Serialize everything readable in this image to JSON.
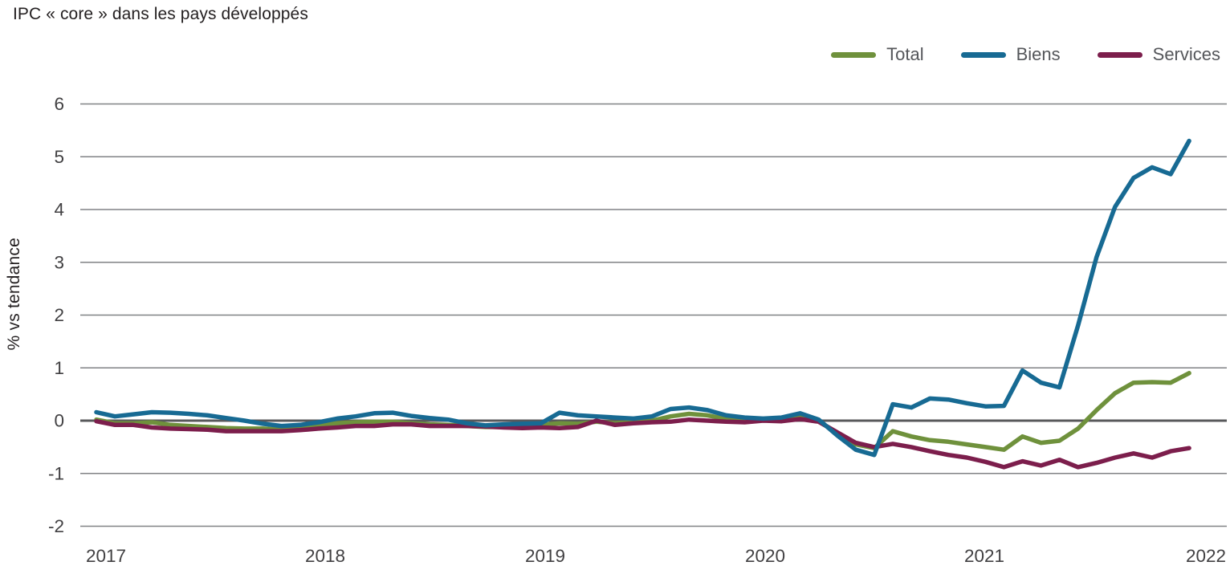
{
  "title": "IPC « core » dans les pays développés",
  "y_axis_title": "% vs tendance",
  "legend": [
    {
      "label": "Total",
      "color": "#6F913C"
    },
    {
      "label": "Biens",
      "color": "#176A93"
    },
    {
      "label": "Services",
      "color": "#7C1E4C"
    }
  ],
  "colors": {
    "gridline": "#808285",
    "zero_line": "#58595B",
    "tick_text": "#414042",
    "legend_text": "#54565A",
    "title_text": "#231F20"
  },
  "chart_data": {
    "type": "line",
    "title": "IPC « core » dans les pays développés",
    "xlabel": "",
    "ylabel": "% vs tendance",
    "ylim": [
      -2,
      6
    ],
    "yticks": [
      6,
      5,
      4,
      3,
      2,
      1,
      0,
      -1,
      -2
    ],
    "grid": "horizontal",
    "legend_position": "top-right",
    "x_frequency": "monthly",
    "x_start": "2017-01",
    "x_end": "2021-12",
    "x_tick_labels": [
      "2017",
      "2018",
      "2019",
      "2020",
      "2021",
      "2022"
    ],
    "series": [
      {
        "name": "Total",
        "color": "#6F913C",
        "values": [
          0.02,
          -0.05,
          -0.05,
          -0.03,
          -0.08,
          -0.1,
          -0.12,
          -0.14,
          -0.15,
          -0.15,
          -0.17,
          -0.15,
          -0.08,
          -0.05,
          -0.03,
          -0.02,
          -0.02,
          -0.05,
          -0.07,
          -0.08,
          -0.1,
          -0.12,
          -0.12,
          -0.12,
          -0.08,
          -0.05,
          -0.06,
          -0.02,
          -0.05,
          -0.03,
          0.0,
          0.08,
          0.13,
          0.1,
          0.03,
          0.0,
          0.02,
          0.04,
          0.08,
          0.0,
          -0.25,
          -0.45,
          -0.52,
          -0.2,
          -0.3,
          -0.37,
          -0.4,
          -0.45,
          -0.5,
          -0.55,
          -0.3,
          -0.42,
          -0.38,
          -0.15,
          0.2,
          0.52,
          0.72,
          0.73,
          0.72,
          0.9
        ]
      },
      {
        "name": "Biens",
        "color": "#176A93",
        "values": [
          0.16,
          0.08,
          0.12,
          0.16,
          0.15,
          0.13,
          0.1,
          0.05,
          0.0,
          -0.06,
          -0.1,
          -0.08,
          -0.03,
          0.04,
          0.08,
          0.14,
          0.15,
          0.09,
          0.05,
          0.02,
          -0.05,
          -0.09,
          -0.07,
          -0.06,
          -0.05,
          0.15,
          0.1,
          0.08,
          0.06,
          0.04,
          0.08,
          0.22,
          0.25,
          0.2,
          0.1,
          0.06,
          0.04,
          0.06,
          0.14,
          0.02,
          -0.28,
          -0.55,
          -0.65,
          0.31,
          0.25,
          0.42,
          0.4,
          0.33,
          0.27,
          0.28,
          0.95,
          0.72,
          0.63,
          1.8,
          3.1,
          4.05,
          4.6,
          4.8,
          4.67,
          5.3
        ]
      },
      {
        "name": "Services",
        "color": "#7C1E4C",
        "values": [
          -0.01,
          -0.08,
          -0.08,
          -0.13,
          -0.15,
          -0.16,
          -0.17,
          -0.2,
          -0.2,
          -0.2,
          -0.2,
          -0.18,
          -0.15,
          -0.13,
          -0.1,
          -0.1,
          -0.07,
          -0.07,
          -0.1,
          -0.1,
          -0.1,
          -0.11,
          -0.13,
          -0.14,
          -0.13,
          -0.14,
          -0.12,
          0.0,
          -0.08,
          -0.05,
          -0.03,
          -0.02,
          0.02,
          0.0,
          -0.02,
          -0.03,
          0.0,
          -0.01,
          0.03,
          -0.02,
          -0.22,
          -0.42,
          -0.5,
          -0.44,
          -0.5,
          -0.58,
          -0.65,
          -0.7,
          -0.78,
          -0.88,
          -0.77,
          -0.85,
          -0.74,
          -0.88,
          -0.8,
          -0.7,
          -0.62,
          -0.7,
          -0.58,
          -0.52
        ]
      }
    ]
  }
}
